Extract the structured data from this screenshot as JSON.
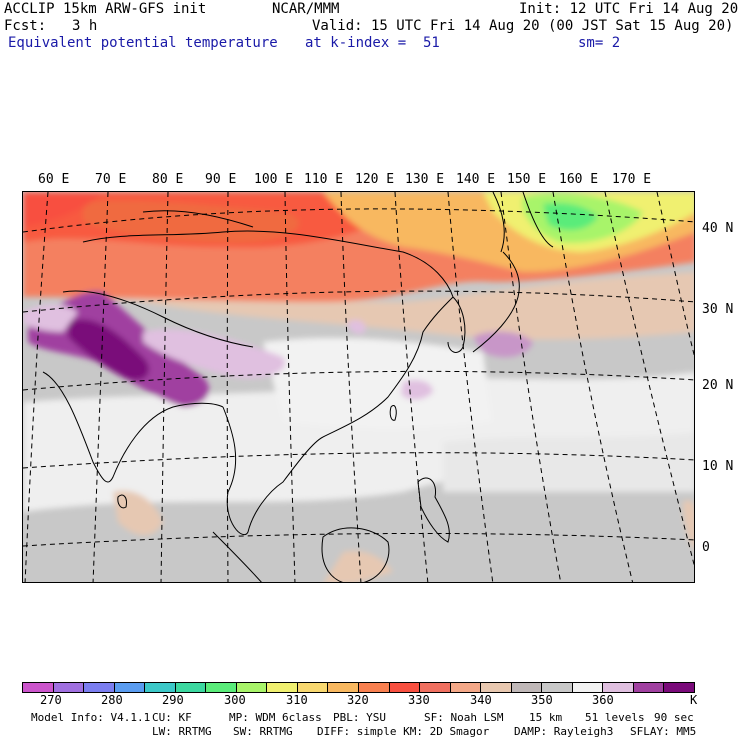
{
  "header": {
    "l1": "ACCLIP 15km ARW-GFS init",
    "l2_label": "Fcst:",
    "l2_value": "3 h",
    "center": "NCAR/MMM",
    "init": "Init: 12 UTC Fri 14 Aug 20",
    "valid": "Valid: 15 UTC Fri 14 Aug 20 (00 JST Sat 15 Aug 20)",
    "field": "Equivalent potential temperature",
    "level": "at k-index =  51",
    "smooth": "sm= 2"
  },
  "map": {
    "lon_labels": [
      "60 E",
      "70 E",
      "80 E",
      "90 E",
      "100 E",
      "110 E",
      "120 E",
      "130 E",
      "140 E",
      "150 E",
      "160 E",
      "170 E"
    ],
    "lat_labels": [
      "40 N",
      "30 N",
      "20 N",
      "10 N",
      "0"
    ]
  },
  "colorbar": {
    "colors": [
      "#cc55cc",
      "#a070e0",
      "#7b7ef0",
      "#5a9cf0",
      "#3cc8c8",
      "#3cd8a0",
      "#5aec7a",
      "#a8f46a",
      "#f0f070",
      "#f8d870",
      "#f8b860",
      "#f88050",
      "#f85040",
      "#f07060",
      "#f4a888",
      "#e8c8b0",
      "#c0b8b8",
      "#c8c8c8",
      "#f2f2f2",
      "#e0c0e0",
      "#a040a0",
      "#7a0a7a"
    ],
    "labels": [
      "270",
      "280",
      "290",
      "300",
      "310",
      "320",
      "330",
      "340",
      "350",
      "360",
      "K"
    ],
    "colors_roles": "theta-e shading scale"
  },
  "footer": {
    "row1": {
      "model": "Model Info: V4.1.1",
      "cu": "CU: KF",
      "mp": "MP: WDM 6class",
      "pbl": "PBL: YSU",
      "sf": "SF: Noah LSM",
      "res": "15 km",
      "levels": "51 levels",
      "dt": "90 sec"
    },
    "row2": {
      "lw": "LW: RRTMG",
      "sw": "SW: RRTMG",
      "diff": "DIFF: simple KM: 2D Smagor",
      "damp": "DAMP: Rayleigh3",
      "sflay": "SFLAY: MM5"
    }
  }
}
